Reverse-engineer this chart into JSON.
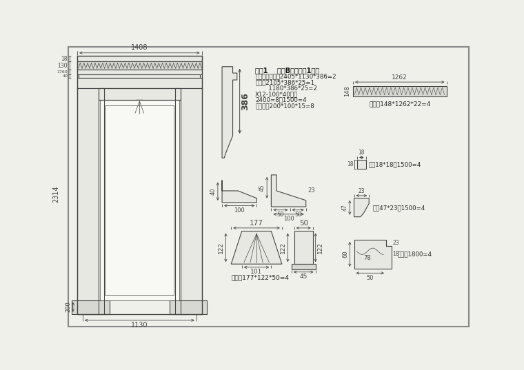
{
  "bg_color": "#f0f0eb",
  "line_color": "#444444",
  "dim_color": "#444444",
  "fill_light": "#e8e8e3",
  "fill_med": "#d8d8d3",
  "fill_white": "#f8f8f5",
  "title_text": "序号1    客厅B立面哑口1料单",
  "line2": "门框内径尺寸：2405*1130*386=2",
  "line3": "主板：2105*386*25=1",
  "line4": "       1180*386*25=2",
  "line5": "X12-100*40线条",
  "line6": "2400=8，1500=4",
  "line7": "配底座：200*100*15=8",
  "note1": "墻板：148*1262*22=4",
  "note2": "压持18*18：1500=4",
  "note3": "压线47*23：1500=4",
  "note4": "归头：1800=4",
  "note5": "雕花：177*122*50=4"
}
